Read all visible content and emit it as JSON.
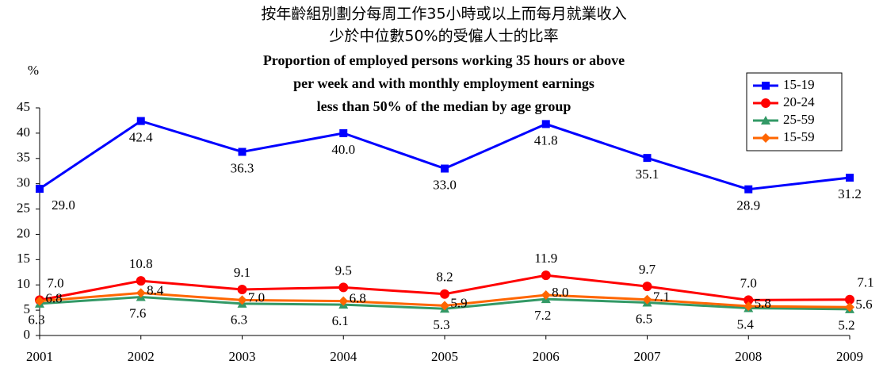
{
  "chart_data": {
    "type": "line",
    "title_zh": [
      "按年齡組別劃分每周工作35小時或以上而每月就業收入",
      "少於中位數50%的受僱人士的比率"
    ],
    "title_en": [
      "Proportion of employed persons working 35 hours or above",
      "per week and with monthly employment earnings",
      "less than 50% of the median by age group"
    ],
    "y_label": "%",
    "categories": [
      "2001",
      "2002",
      "2003",
      "2004",
      "2005",
      "2006",
      "2007",
      "2008",
      "2009"
    ],
    "series": [
      {
        "name": "15-19",
        "color": "#0000ff",
        "marker": "square",
        "values": [
          29.0,
          42.4,
          36.3,
          40.0,
          33.0,
          41.8,
          35.1,
          28.9,
          31.2
        ],
        "value_labels": [
          "29.0",
          "42.4",
          "36.3",
          "40.0",
          "33.0",
          "41.8",
          "35.1",
          "28.9",
          "31.2"
        ]
      },
      {
        "name": "20-24",
        "color": "#ff0000",
        "marker": "circle",
        "values": [
          7.0,
          10.8,
          9.1,
          9.5,
          8.2,
          11.9,
          9.7,
          7.0,
          7.1
        ],
        "value_labels": [
          "7.0",
          "10.8",
          "9.1",
          "9.5",
          "8.2",
          "11.9",
          "9.7",
          "7.0",
          "7.1"
        ]
      },
      {
        "name": "25-59",
        "color": "#339966",
        "marker": "triangle",
        "values": [
          6.3,
          7.6,
          6.3,
          6.1,
          5.3,
          7.2,
          6.5,
          5.4,
          5.2
        ],
        "value_labels": [
          "6.3",
          "7.6",
          "6.3",
          "6.1",
          "5.3",
          "7.2",
          "6.5",
          "5.4",
          "5.2"
        ]
      },
      {
        "name": "15-59",
        "color": "#ff6600",
        "marker": "diamond",
        "values": [
          6.8,
          8.4,
          7.0,
          6.8,
          5.9,
          8.0,
          7.1,
          5.8,
          5.6
        ],
        "value_labels": [
          "6.8",
          "8.4",
          "7.0",
          "6.8",
          "5.9",
          "8.0",
          "7.1",
          "5.8",
          "5.6"
        ]
      }
    ],
    "ylim": [
      0,
      45
    ],
    "yticks": [
      0,
      5,
      10,
      15,
      20,
      25,
      30,
      35,
      40,
      45
    ],
    "grid": false,
    "legend": "top-right"
  }
}
